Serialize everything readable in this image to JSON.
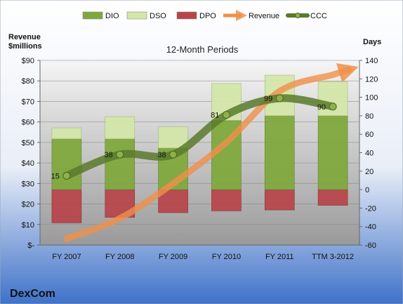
{
  "chart_data": {
    "type": "bar",
    "title": "12-Month Periods",
    "company": "DexCom",
    "categories": [
      "FY 2007",
      "FY 2008",
      "FY 2009",
      "FY 2010",
      "FY 2011",
      "TTM 3-2012"
    ],
    "left_axis": {
      "label_line1": "Revenue",
      "label_line2": "$millions",
      "ylim": [
        0,
        90
      ],
      "ticks": [
        {
          "value": 0,
          "label": "$-"
        },
        {
          "value": 10,
          "label": "$10"
        },
        {
          "value": 20,
          "label": "$20"
        },
        {
          "value": 30,
          "label": "$30"
        },
        {
          "value": 40,
          "label": "$40"
        },
        {
          "value": 50,
          "label": "$50"
        },
        {
          "value": 60,
          "label": "$60"
        },
        {
          "value": 70,
          "label": "$70"
        },
        {
          "value": 80,
          "label": "$80"
        },
        {
          "value": 90,
          "label": "$90"
        }
      ]
    },
    "right_axis": {
      "label": "Days",
      "ylim": [
        -60,
        140
      ],
      "ticks": [
        -60,
        -40,
        -20,
        0,
        20,
        40,
        60,
        80,
        100,
        120,
        140
      ]
    },
    "series": [
      {
        "name": "DIO",
        "axis": "right",
        "kind": "stacked-bar",
        "values": [
          55,
          55,
          45,
          75,
          80,
          80
        ],
        "color": "#7ea83a"
      },
      {
        "name": "DSO",
        "axis": "right",
        "kind": "stacked-bar",
        "values": [
          12,
          24,
          23,
          40,
          44,
          37
        ],
        "color": "#d4e7a8"
      },
      {
        "name": "DPO",
        "axis": "right",
        "kind": "negative-bar",
        "values": [
          -36,
          -30,
          -25,
          -23,
          -22,
          -17
        ],
        "color": "#b8444a"
      },
      {
        "name": "Revenue",
        "axis": "left",
        "kind": "arrow-line",
        "values": [
          3,
          13,
          30,
          50,
          75,
          83
        ],
        "color": "#f0904a"
      },
      {
        "name": "CCC",
        "axis": "right",
        "kind": "line",
        "values": [
          15,
          38,
          38,
          81,
          99,
          90
        ],
        "data_labels": [
          "15",
          "38",
          "38",
          "81",
          "99",
          "90"
        ],
        "color": "#5a7a2c"
      }
    ],
    "legend": {
      "position": "top",
      "items": [
        "DIO",
        "DSO",
        "DPO",
        "Revenue",
        "CCC"
      ]
    },
    "grid": true
  }
}
